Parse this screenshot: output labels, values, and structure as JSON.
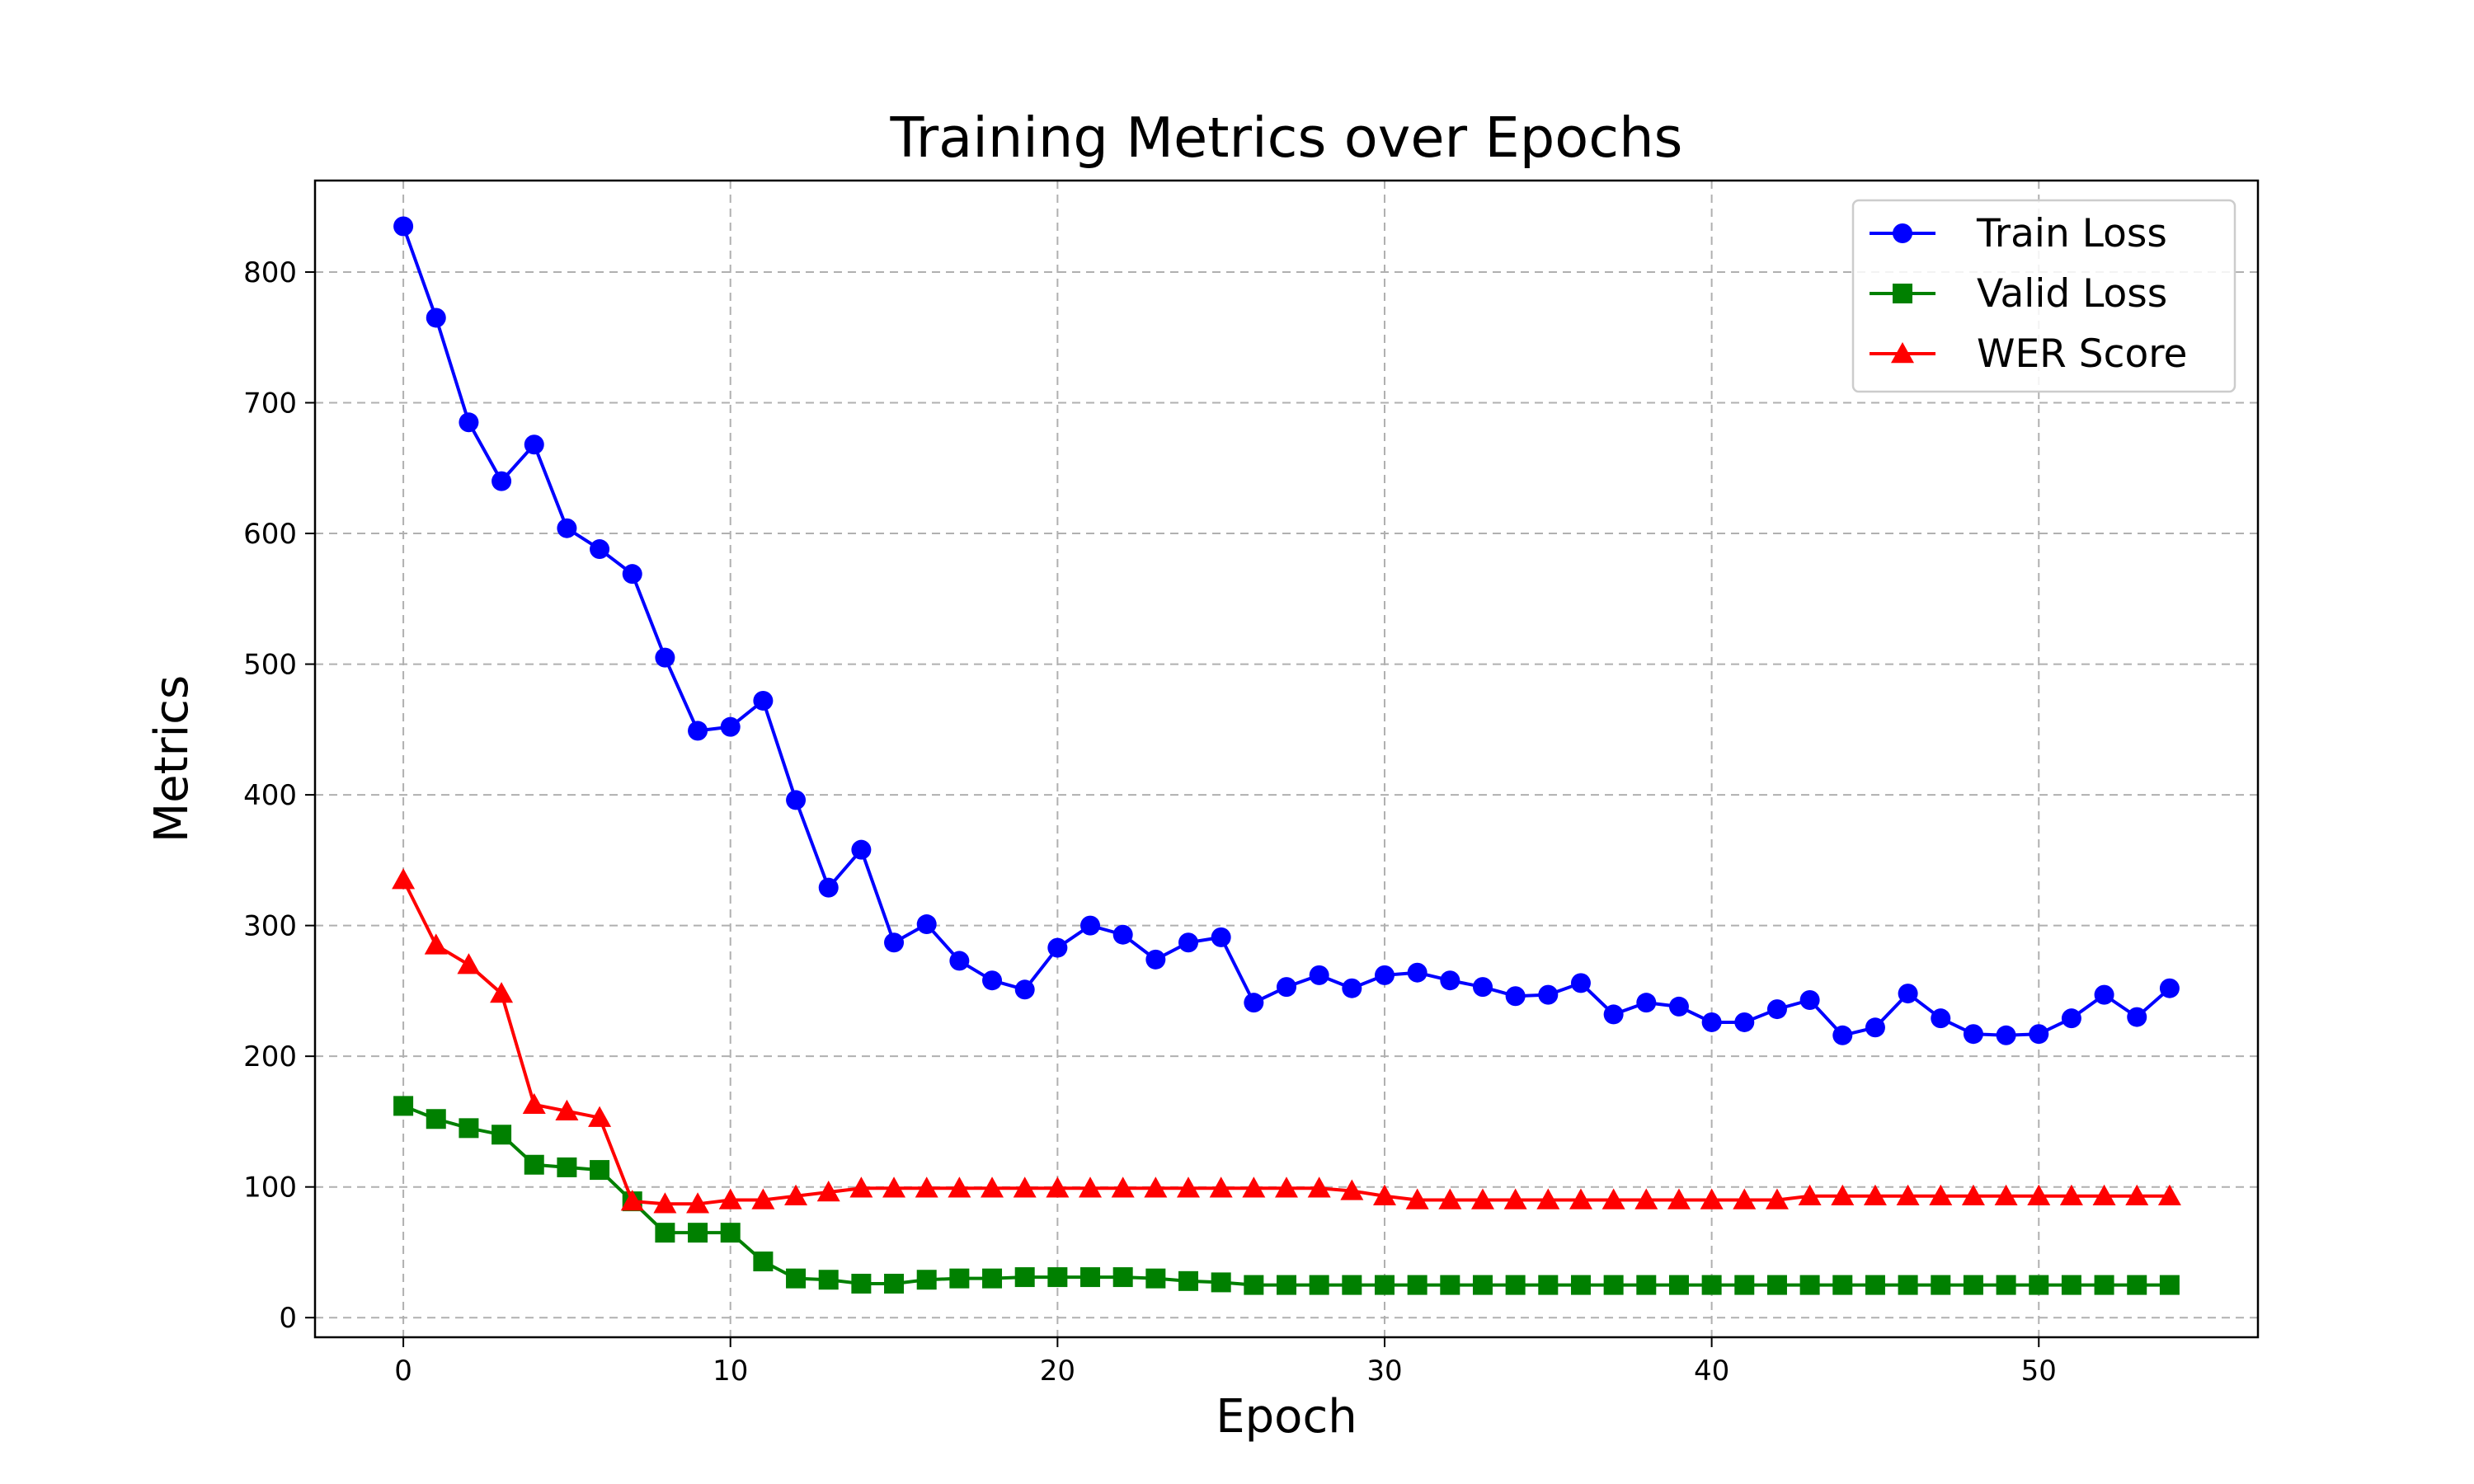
{
  "chart_data": {
    "type": "line",
    "title": "Training Metrics over Epochs",
    "xlabel": "Epoch",
    "ylabel": "Metrics",
    "xlim": [
      -2.7,
      56.7
    ],
    "ylim": [
      -15,
      870
    ],
    "xticks": [
      0,
      10,
      20,
      30,
      40,
      50
    ],
    "yticks": [
      0,
      100,
      200,
      300,
      400,
      500,
      600,
      700,
      800
    ],
    "grid": true,
    "legend_position": "top-right",
    "x": [
      0,
      1,
      2,
      3,
      4,
      5,
      6,
      7,
      8,
      9,
      10,
      11,
      12,
      13,
      14,
      15,
      16,
      17,
      18,
      19,
      20,
      21,
      22,
      23,
      24,
      25,
      26,
      27,
      28,
      29,
      30,
      31,
      32,
      33,
      34,
      35,
      36,
      37,
      38,
      39,
      40,
      41,
      42,
      43,
      44,
      45,
      46,
      47,
      48,
      49,
      50,
      51,
      52,
      53,
      54
    ],
    "series": [
      {
        "name": "Train Loss",
        "color": "#0000ff",
        "marker": "circle",
        "values": [
          835,
          765,
          685,
          640,
          668,
          604,
          588,
          569,
          505,
          449,
          452,
          472,
          396,
          329,
          358,
          287,
          301,
          273,
          258,
          251,
          283,
          300,
          293,
          274,
          287,
          291,
          241,
          253,
          262,
          252,
          262,
          264,
          258,
          253,
          246,
          247,
          256,
          232,
          241,
          238,
          226,
          226,
          236,
          243,
          216,
          222,
          248,
          229,
          217,
          216,
          217,
          229,
          247,
          230,
          252
        ]
      },
      {
        "name": "Valid Loss",
        "color": "#008000",
        "marker": "square",
        "values": [
          162,
          152,
          145,
          140,
          117,
          115,
          113,
          89,
          65,
          65,
          65,
          43,
          30,
          29,
          26,
          26,
          29,
          30,
          30,
          31,
          31,
          31,
          31,
          30,
          28,
          27,
          25,
          25,
          25,
          25,
          25,
          25,
          25,
          25,
          25,
          25,
          25,
          25,
          25,
          25,
          25,
          25,
          25,
          25,
          25,
          25,
          25,
          25,
          25,
          25,
          25,
          25,
          25,
          25,
          25
        ]
      },
      {
        "name": "WER Score",
        "color": "#ff0000",
        "marker": "triangle",
        "values": [
          335,
          285,
          270,
          248,
          163,
          158,
          153,
          89,
          87,
          87,
          90,
          90,
          93,
          96,
          99,
          99,
          99,
          99,
          99,
          99,
          99,
          99,
          99,
          99,
          99,
          99,
          99,
          99,
          99,
          97,
          93,
          90,
          90,
          90,
          90,
          90,
          90,
          90,
          90,
          90,
          90,
          90,
          90,
          93,
          93,
          93,
          93,
          93,
          93,
          93,
          93,
          93,
          93,
          93,
          93
        ]
      }
    ]
  }
}
